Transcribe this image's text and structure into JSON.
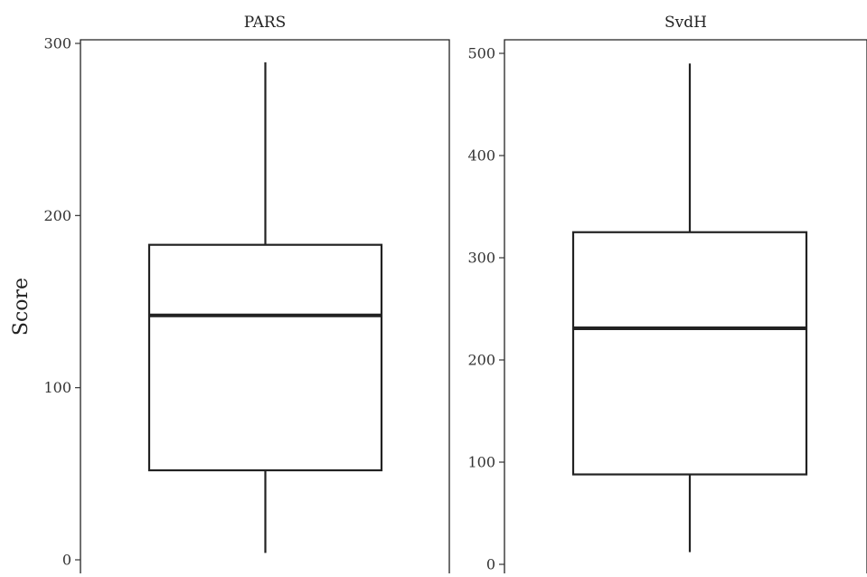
{
  "chart_data": {
    "type": "boxplot",
    "ylabel": "Score",
    "panels": [
      {
        "title": "PARS",
        "ylim": [
          0,
          300
        ],
        "yticks": [
          0,
          100,
          200,
          300
        ],
        "ytick_labels": [
          "0",
          "100",
          "200",
          "300"
        ],
        "box": {
          "min": 4,
          "q1": 52,
          "median": 142,
          "q3": 183,
          "max": 289
        }
      },
      {
        "title": "SvdH",
        "ylim": [
          0,
          500
        ],
        "yticks": [
          0,
          100,
          200,
          300,
          400,
          500
        ],
        "ytick_labels": [
          "0",
          "100",
          "200",
          "300",
          "400",
          "500"
        ],
        "box": {
          "min": 12,
          "q1": 88,
          "median": 231,
          "q3": 325,
          "max": 490
        }
      }
    ]
  }
}
